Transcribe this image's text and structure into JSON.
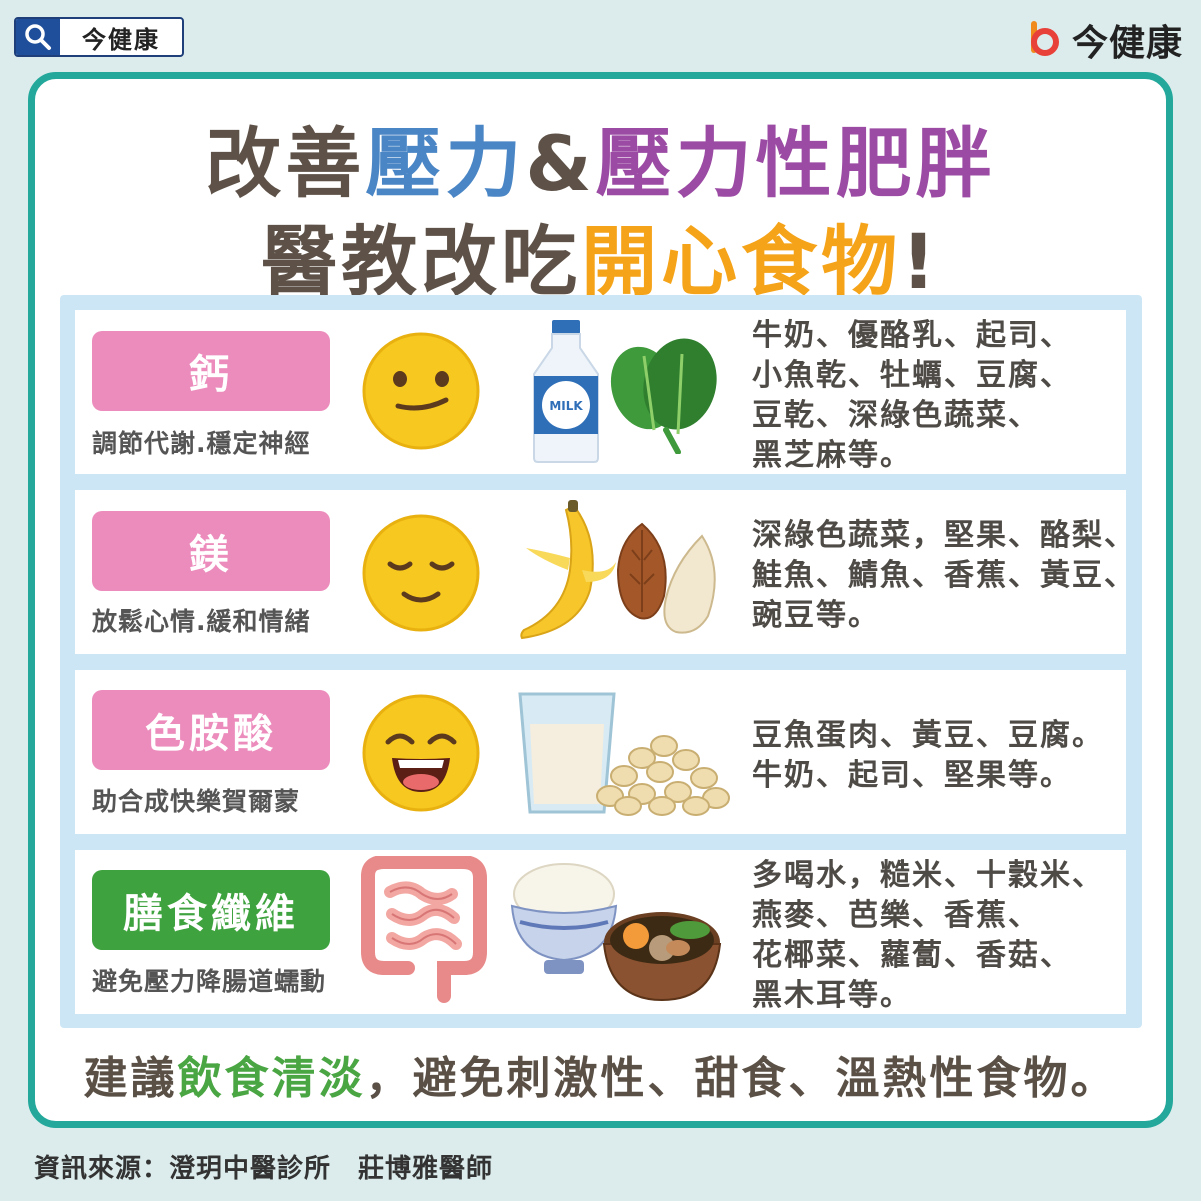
{
  "search": {
    "label": "今健康"
  },
  "brand": {
    "name": "今健康"
  },
  "title": {
    "line1": [
      {
        "text": "改善",
        "color": "#5e5248"
      },
      {
        "text": "壓力",
        "color": "#4a86c5"
      },
      {
        "text": "&",
        "color": "#5e5248"
      },
      {
        "text": "壓力性肥胖",
        "color": "#9b4ba3"
      }
    ],
    "line2": [
      {
        "text": "醫教改吃",
        "color": "#5e5248"
      },
      {
        "text": "開心食物",
        "color": "#f5a318"
      },
      {
        "text": "!",
        "color": "#5e5248"
      }
    ]
  },
  "rows": [
    {
      "tag": "鈣",
      "subtitle": "調節代謝.穩定神經",
      "foods": [
        "牛奶、優酪乳、起司、",
        "小魚乾、牡蠣、豆腐、",
        "豆乾、深綠色蔬菜、",
        "黑芝麻等。"
      ],
      "milk_label": "MILK"
    },
    {
      "tag": "鎂",
      "subtitle": "放鬆心情.緩和情緒",
      "foods": [
        "深綠色蔬菜，堅果、酪梨、",
        "鮭魚、鯖魚、香蕉、黃豆、",
        "豌豆等。"
      ]
    },
    {
      "tag": "色胺酸",
      "subtitle": "助合成快樂賀爾蒙",
      "foods": [
        "豆魚蛋肉、黃豆、豆腐。",
        "牛奶、起司、堅果等。"
      ]
    },
    {
      "tag": "膳食纖維",
      "subtitle": "避免壓力降腸道蠕動",
      "foods": [
        "多喝水，糙米、十穀米、",
        "燕麥、芭樂、香蕉、",
        "花椰菜、蘿蔔、香菇、",
        "黑木耳等。"
      ]
    }
  ],
  "bottom": {
    "prefix": "建議",
    "highlight": "飲食清淡",
    "suffix": "，避免刺激性、甜食、溫熱性食物。"
  },
  "source": "資訊來源：澄玥中醫診所　莊博雅醫師",
  "colors": {
    "frame": "#23a89b",
    "tag_pink": "#ec8cbc",
    "tag_green": "#3ea23e",
    "highlight_green": "#4aa543"
  }
}
